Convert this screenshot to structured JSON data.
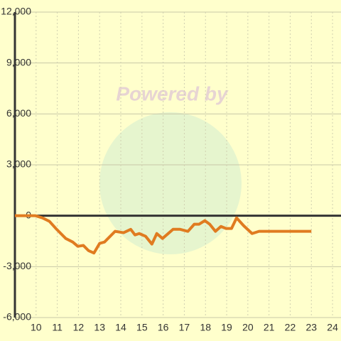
{
  "chart_data": {
    "type": "line",
    "watermark": "Powered by",
    "x": [
      9,
      9.97,
      10.3,
      10.63,
      10.97,
      11.4,
      11.73,
      11.97,
      12.23,
      12.47,
      12.73,
      13.0,
      13.23,
      13.73,
      14.13,
      14.47,
      14.67,
      14.87,
      15.17,
      15.47,
      15.7,
      15.97,
      16.47,
      16.8,
      17.17,
      17.47,
      17.7,
      17.97,
      18.2,
      18.47,
      18.73,
      18.97,
      19.23,
      19.47,
      19.8,
      20.2,
      20.53,
      21.63,
      23.0
    ],
    "series": [
      {
        "color": "#e07b20",
        "values": [
          0,
          0,
          -125,
          -330,
          -800,
          -1340,
          -1550,
          -1800,
          -1750,
          -2050,
          -2200,
          -1630,
          -1550,
          -920,
          -1000,
          -800,
          -1130,
          -1050,
          -1210,
          -1670,
          -1050,
          -1340,
          -800,
          -800,
          -920,
          -500,
          -500,
          -290,
          -500,
          -920,
          -630,
          -750,
          -750,
          -125,
          -585,
          -1050,
          -920,
          -920,
          -920
        ]
      }
    ],
    "xlim": [
      9,
      24.4
    ],
    "ylim": [
      -6000,
      12000
    ],
    "xticks": [
      10,
      11,
      12,
      13,
      14,
      15,
      16,
      17,
      18,
      19,
      20,
      21,
      22,
      23,
      24
    ],
    "yticks": [
      {
        "value": -6000,
        "label": "-6,000"
      },
      {
        "value": -3000,
        "label": "-3,000"
      },
      0,
      {
        "value": 3000,
        "label": "3,000"
      },
      {
        "value": 6000,
        "label": "6,000"
      },
      {
        "value": 9000,
        "label": "9,000"
      },
      {
        "value": 12000,
        "label": "12,000"
      }
    ],
    "grid": true
  }
}
